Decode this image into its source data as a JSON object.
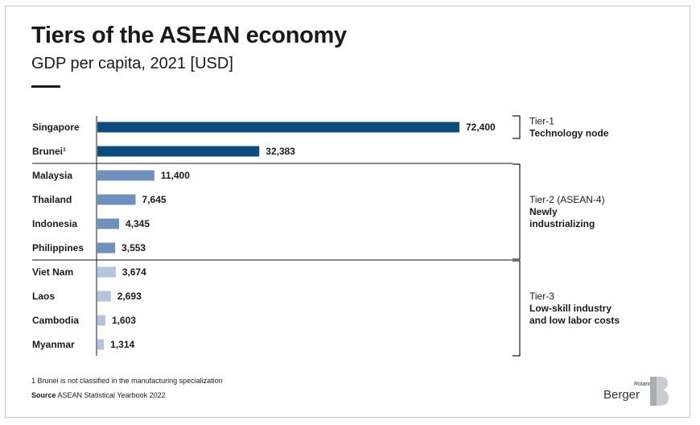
{
  "title": "Tiers of the ASEAN economy",
  "subtitle": "GDP per capita, 2021 [USD]",
  "footnote": "1 Brunei is not classified in the manufacturing specialization",
  "source": {
    "label": "Source",
    "text": "ASEAN Statistical Yearbook 2022"
  },
  "logo": {
    "small": "Roland",
    "large": "Berger"
  },
  "colors": {
    "tier1": "#0e4c7e",
    "tier2": "#6f8fbd",
    "tier3": "#b3c3e0",
    "text": "#1a1a1a"
  },
  "chart_data": {
    "type": "bar",
    "orientation": "horizontal",
    "title": "Tiers of the ASEAN economy",
    "subtitle": "GDP per capita, 2021 [USD]",
    "categories": [
      "Singapore",
      "Brunei",
      "Malaysia",
      "Thailand",
      "Indonesia",
      "Philippines",
      "Viet Nam",
      "Laos",
      "Cambodia",
      "Myanmar"
    ],
    "category_labels": [
      "Singapore",
      "Brunei¹",
      "Malaysia",
      "Thailand",
      "Indonesia",
      "Philippines",
      "Viet Nam",
      "Laos",
      "Cambodia",
      "Myanmar"
    ],
    "values": [
      72400,
      32383,
      11400,
      7645,
      4345,
      3553,
      3674,
      2693,
      1603,
      1314
    ],
    "value_labels": [
      "72,400",
      "32,383",
      "11,400",
      "7,645",
      "4,345",
      "3,553",
      "3,674",
      "2,693",
      "1,603",
      "1,314"
    ],
    "tier_of_bar": [
      1,
      1,
      2,
      2,
      2,
      2,
      3,
      3,
      3,
      3
    ],
    "xlim": [
      0,
      72400
    ],
    "grid": false,
    "legend": "none",
    "tiers": [
      {
        "name": "Tier-1",
        "description": [
          "Technology node"
        ],
        "range": [
          0,
          0
        ]
      },
      {
        "name": "Tier-2 (ASEAN-4)",
        "description": [
          "Newly",
          "industrializing"
        ],
        "range": [
          2,
          5
        ]
      },
      {
        "name": "Tier-3",
        "description": [
          "Low-skill industry",
          "and low labor costs"
        ],
        "range": [
          6,
          9
        ]
      }
    ]
  }
}
